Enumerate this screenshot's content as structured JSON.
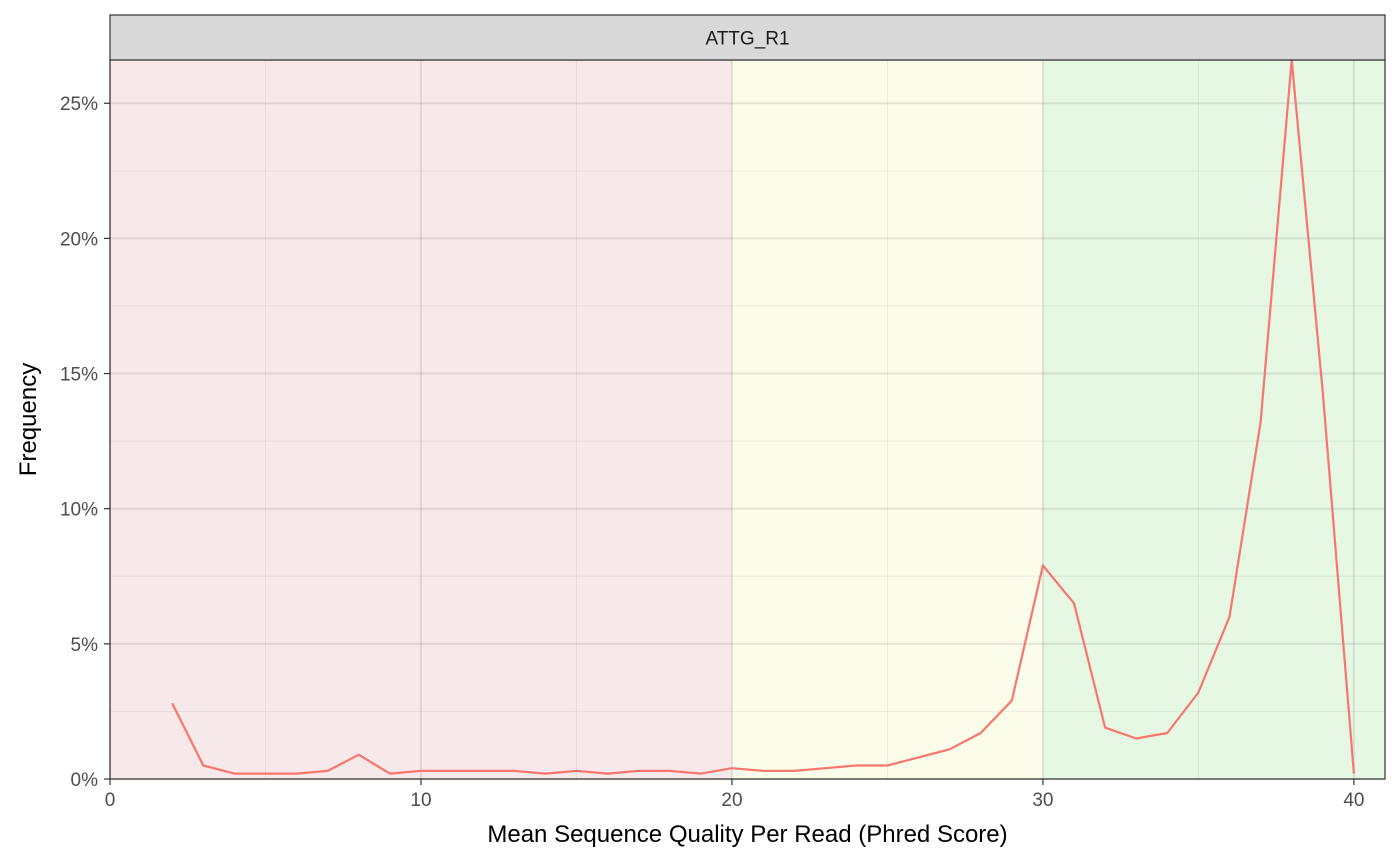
{
  "chart_data": {
    "type": "line",
    "facet_label": "ATTG_R1",
    "xlabel": "Mean Sequence Quality Per Read (Phred Score)",
    "ylabel": "Frequency",
    "xlim": [
      0,
      41
    ],
    "ylim": [
      0,
      26.6
    ],
    "x_ticks": [
      0,
      10,
      20,
      30,
      40
    ],
    "y_ticks": [
      0,
      5,
      10,
      15,
      20,
      25
    ],
    "y_tick_labels": [
      "0%",
      "5%",
      "10%",
      "15%",
      "20%",
      "25%"
    ],
    "grid": true,
    "legend": "none",
    "background_bands": [
      {
        "from": 0,
        "to": 20,
        "color": "#f7e9e9"
      },
      {
        "from": 20,
        "to": 30,
        "color": "#fbfcea"
      },
      {
        "from": 30,
        "to": 41,
        "color": "#e6f7e4"
      }
    ],
    "series": [
      {
        "color": "#f8766d",
        "points": [
          [
            2,
            2.8
          ],
          [
            3,
            0.5
          ],
          [
            4,
            0.2
          ],
          [
            5,
            0.2
          ],
          [
            6,
            0.2
          ],
          [
            7,
            0.3
          ],
          [
            8,
            0.9
          ],
          [
            9,
            0.2
          ],
          [
            10,
            0.3
          ],
          [
            11,
            0.3
          ],
          [
            12,
            0.3
          ],
          [
            13,
            0.3
          ],
          [
            14,
            0.2
          ],
          [
            15,
            0.3
          ],
          [
            16,
            0.2
          ],
          [
            17,
            0.3
          ],
          [
            18,
            0.3
          ],
          [
            19,
            0.2
          ],
          [
            20,
            0.4
          ],
          [
            21,
            0.3
          ],
          [
            22,
            0.3
          ],
          [
            23,
            0.4
          ],
          [
            24,
            0.5
          ],
          [
            25,
            0.5
          ],
          [
            26,
            0.8
          ],
          [
            27,
            1.1
          ],
          [
            28,
            1.7
          ],
          [
            29,
            2.9
          ],
          [
            30,
            7.9
          ],
          [
            31,
            6.5
          ],
          [
            32,
            1.9
          ],
          [
            33,
            1.5
          ],
          [
            34,
            1.7
          ],
          [
            35,
            3.2
          ],
          [
            36,
            6.0
          ],
          [
            37,
            13.2
          ],
          [
            38,
            26.6
          ],
          [
            39,
            14.3
          ],
          [
            40,
            0.2
          ]
        ]
      }
    ]
  }
}
